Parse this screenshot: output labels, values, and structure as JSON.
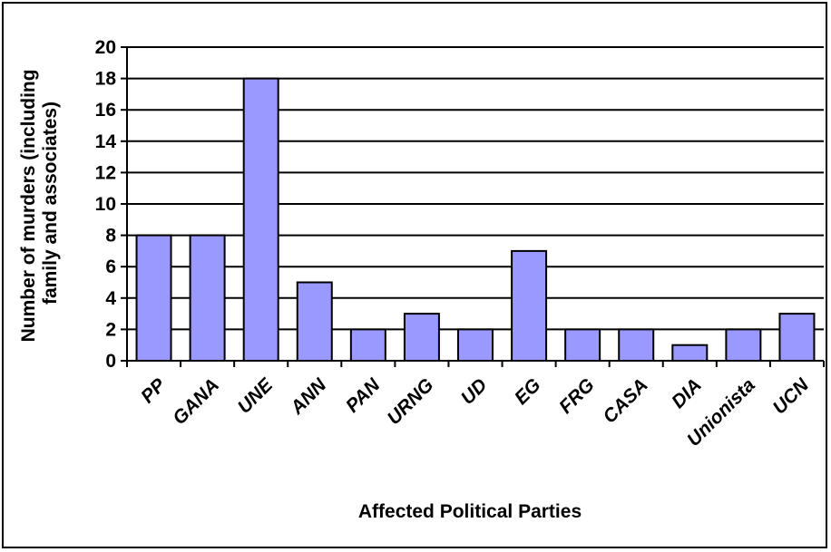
{
  "chart_data": {
    "type": "bar",
    "title": "",
    "xlabel": "Affected Political Parties",
    "ylabel_lines": [
      "Number of murders (including",
      "family and associates)"
    ],
    "ylim": [
      0,
      20
    ],
    "yticks": [
      0,
      2,
      4,
      6,
      8,
      10,
      12,
      14,
      16,
      18,
      20
    ],
    "grid": true,
    "legend": "none",
    "bar_color": "#9999ff",
    "categories": [
      "PP",
      "GANA",
      "UNE",
      "ANN",
      "PAN",
      "URNG",
      "UD",
      "EG",
      "FRG",
      "CASA",
      "DIA",
      "Unionista",
      "UCN"
    ],
    "values": [
      8,
      8,
      18,
      5,
      2,
      3,
      2,
      7,
      2,
      2,
      1,
      2,
      3
    ]
  }
}
